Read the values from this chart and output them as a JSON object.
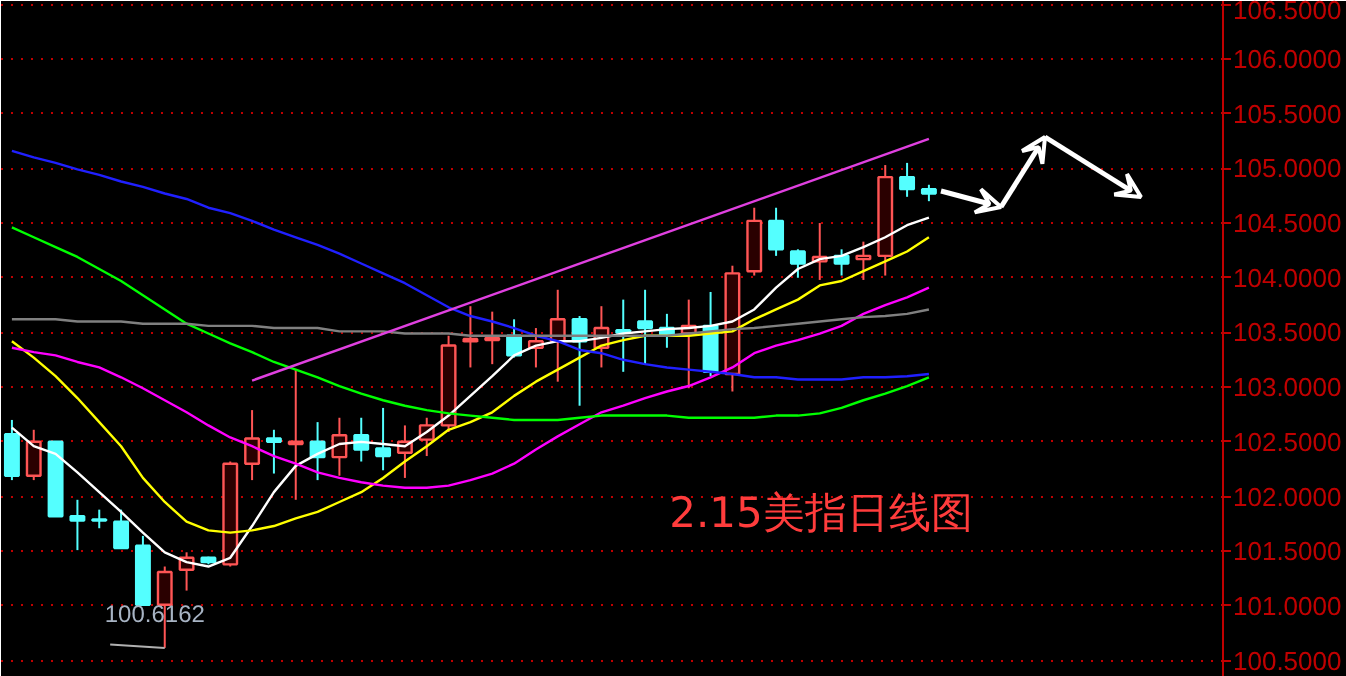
{
  "chart_data": {
    "type": "candlestick",
    "title": "2.15美指日线图",
    "categories": [
      null,
      null,
      null,
      null,
      null,
      null,
      null,
      null,
      null,
      null,
      null,
      null,
      null,
      null,
      null,
      null,
      null,
      null,
      null,
      null,
      null,
      null,
      null,
      null,
      null,
      null,
      null,
      null,
      null,
      null,
      null,
      null,
      null,
      null,
      null,
      null,
      null,
      null,
      null,
      null,
      null,
      null,
      null
    ],
    "ohlc": [
      [
        102.57,
        102.7,
        102.15,
        102.19
      ],
      [
        102.19,
        102.61,
        102.15,
        102.5
      ],
      [
        102.5,
        102.5,
        101.82,
        101.82
      ],
      [
        101.82,
        101.97,
        101.51,
        101.78
      ],
      [
        101.79,
        101.88,
        101.71,
        101.78
      ],
      [
        101.77,
        101.88,
        101.52,
        101.53
      ],
      [
        101.55,
        101.64,
        101.0,
        101.01
      ],
      [
        101.01,
        101.36,
        100.6162,
        101.31
      ],
      [
        101.33,
        101.49,
        101.14,
        101.44
      ],
      [
        101.44,
        101.45,
        101.38,
        101.4
      ],
      [
        101.38,
        102.32,
        101.36,
        102.3
      ],
      [
        102.3,
        102.79,
        102.15,
        102.53
      ],
      [
        102.53,
        102.61,
        102.21,
        102.5
      ],
      [
        102.48,
        103.16,
        101.97,
        102.5
      ],
      [
        102.5,
        102.68,
        102.15,
        102.36
      ],
      [
        102.36,
        102.72,
        102.19,
        102.56
      ],
      [
        102.56,
        102.72,
        102.32,
        102.43
      ],
      [
        102.44,
        102.81,
        102.24,
        102.37
      ],
      [
        102.4,
        102.65,
        102.17,
        102.5
      ],
      [
        102.52,
        102.72,
        102.37,
        102.65
      ],
      [
        102.65,
        103.47,
        102.59,
        103.38
      ],
      [
        103.42,
        103.74,
        103.18,
        103.44
      ],
      [
        103.43,
        103.69,
        103.21,
        103.45
      ],
      [
        103.47,
        103.62,
        103.27,
        103.29
      ],
      [
        103.36,
        103.54,
        103.18,
        103.42
      ],
      [
        103.42,
        103.89,
        103.05,
        103.62
      ],
      [
        103.62,
        103.65,
        102.83,
        103.42
      ],
      [
        103.36,
        103.74,
        103.18,
        103.54
      ],
      [
        103.52,
        103.8,
        103.14,
        103.5
      ],
      [
        103.6,
        103.89,
        103.21,
        103.54
      ],
      [
        103.54,
        103.67,
        103.36,
        103.47
      ],
      [
        103.49,
        103.8,
        102.99,
        103.56
      ],
      [
        103.56,
        103.87,
        103.1,
        103.14
      ],
      [
        103.12,
        104.11,
        102.96,
        104.04
      ],
      [
        104.06,
        104.64,
        104.02,
        104.52
      ],
      [
        104.52,
        104.64,
        104.2,
        104.26
      ],
      [
        104.24,
        104.26,
        104.0,
        104.13
      ],
      [
        104.15,
        104.5,
        103.98,
        104.19
      ],
      [
        104.2,
        104.26,
        104.02,
        104.13
      ],
      [
        104.17,
        104.33,
        103.98,
        104.2
      ],
      [
        104.2,
        105.03,
        104.02,
        104.92
      ],
      [
        104.92,
        105.05,
        104.74,
        104.81
      ],
      [
        104.81,
        104.85,
        104.7,
        104.77
      ]
    ],
    "colors": [
      "#54ffff",
      "#ff5555",
      "#54ffff",
      "#54ffff",
      "#54ffff",
      "#54ffff",
      "#54ffff",
      "#ff5555",
      "#ff5555",
      "#54ffff",
      "#ff5555",
      "#ff5555",
      "#54ffff",
      "#ff5555",
      "#54ffff",
      "#ff5555",
      "#54ffff",
      "#54ffff",
      "#ff5555",
      "#ff5555",
      "#ff5555",
      "#ff5555",
      "#ff5555",
      "#54ffff",
      "#ff5555",
      "#ff5555",
      "#54ffff",
      "#ff5555",
      "#54ffff",
      "#54ffff",
      "#54ffff",
      "#ff5555",
      "#54ffff",
      "#ff5555",
      "#ff5555",
      "#54ffff",
      "#54ffff",
      "#ff5555",
      "#54ffff",
      "#ff5555",
      "#ff5555",
      "#54ffff",
      "#54ffff"
    ],
    "series": [
      {
        "type": "line",
        "color": "#ffffff",
        "values": [
          102.63,
          102.46,
          102.39,
          102.22,
          102.04,
          101.86,
          101.67,
          101.49,
          101.4,
          101.36,
          101.44,
          101.73,
          102.04,
          102.28,
          102.39,
          102.48,
          102.5,
          102.48,
          102.46,
          102.59,
          102.74,
          102.92,
          103.1,
          103.29,
          103.38,
          103.42,
          103.42,
          103.45,
          103.49,
          103.51,
          103.53,
          103.54,
          103.56,
          103.6,
          103.71,
          103.91,
          104.08,
          104.17,
          104.2,
          104.28,
          104.37,
          104.48,
          104.55
        ]
      },
      {
        "type": "line",
        "color": "#ffff00",
        "values": [
          103.42,
          103.27,
          103.1,
          102.9,
          102.68,
          102.46,
          102.17,
          101.95,
          101.77,
          101.69,
          101.67,
          101.69,
          101.73,
          101.8,
          101.86,
          101.95,
          102.04,
          102.17,
          102.32,
          102.46,
          102.61,
          102.68,
          102.77,
          102.92,
          103.05,
          103.16,
          103.27,
          103.38,
          103.43,
          103.47,
          103.47,
          103.47,
          103.49,
          103.51,
          103.62,
          103.71,
          103.8,
          103.93,
          103.97,
          104.06,
          104.15,
          104.24,
          104.37
        ]
      },
      {
        "type": "line",
        "color": "#ff00ff",
        "values": [
          103.36,
          103.32,
          103.29,
          103.23,
          103.18,
          103.09,
          102.99,
          102.88,
          102.77,
          102.65,
          102.54,
          102.46,
          102.37,
          102.3,
          102.22,
          102.17,
          102.13,
          102.1,
          102.08,
          102.08,
          102.1,
          102.15,
          102.21,
          102.3,
          102.43,
          102.55,
          102.66,
          102.77,
          102.83,
          102.9,
          102.96,
          103.01,
          103.09,
          103.18,
          103.31,
          103.38,
          103.43,
          103.49,
          103.56,
          103.67,
          103.75,
          103.82,
          103.91
        ]
      },
      {
        "type": "line",
        "color": "#00ff00",
        "values": [
          104.46,
          104.37,
          104.28,
          104.19,
          104.08,
          103.97,
          103.84,
          103.71,
          103.58,
          103.49,
          103.4,
          103.32,
          103.23,
          103.16,
          103.09,
          103.01,
          102.94,
          102.88,
          102.83,
          102.79,
          102.76,
          102.74,
          102.72,
          102.7,
          102.7,
          102.7,
          102.72,
          102.74,
          102.74,
          102.74,
          102.74,
          102.72,
          102.72,
          102.72,
          102.72,
          102.74,
          102.74,
          102.76,
          102.81,
          102.88,
          102.94,
          103.01,
          103.09
        ]
      },
      {
        "type": "line",
        "color": "#2020ff",
        "values": [
          105.16,
          105.1,
          105.05,
          104.99,
          104.94,
          104.88,
          104.83,
          104.77,
          104.72,
          104.64,
          104.59,
          104.52,
          104.44,
          104.37,
          104.3,
          104.22,
          104.13,
          104.04,
          103.95,
          103.84,
          103.73,
          103.65,
          103.6,
          103.54,
          103.47,
          103.42,
          103.34,
          103.31,
          103.25,
          103.21,
          103.18,
          103.16,
          103.14,
          103.12,
          103.09,
          103.09,
          103.07,
          103.07,
          103.07,
          103.09,
          103.09,
          103.1,
          103.12
        ]
      },
      {
        "type": "line",
        "color": "#808080",
        "values": [
          103.62,
          103.62,
          103.62,
          103.6,
          103.6,
          103.6,
          103.58,
          103.58,
          103.58,
          103.56,
          103.56,
          103.56,
          103.54,
          103.54,
          103.54,
          103.51,
          103.51,
          103.51,
          103.49,
          103.49,
          103.49,
          103.47,
          103.47,
          103.47,
          103.47,
          103.47,
          103.47,
          103.47,
          103.47,
          103.47,
          103.47,
          103.49,
          103.51,
          103.53,
          103.54,
          103.56,
          103.58,
          103.6,
          103.62,
          103.64,
          103.65,
          103.67,
          103.71
        ]
      },
      {
        "type": "line",
        "color": "#e040e0",
        "values": [
          null,
          null,
          null,
          null,
          null,
          null,
          null,
          null,
          null,
          null,
          null,
          103.06,
          null,
          null,
          null,
          null,
          null,
          null,
          null,
          null,
          null,
          null,
          null,
          null,
          null,
          null,
          null,
          null,
          null,
          null,
          null,
          null,
          null,
          null,
          null,
          null,
          null,
          null,
          null,
          null,
          null,
          null,
          105.27
        ]
      }
    ],
    "annotations": [
      {
        "text": "100.6162",
        "y": 100.6162
      }
    ],
    "ylim": [
      100.35,
      106.53
    ],
    "yticks": [
      {
        "value": 100.5,
        "label": "100.5000"
      },
      {
        "value": 101.0,
        "label": "101.0000"
      },
      {
        "value": 101.5,
        "label": "101.5000"
      },
      {
        "value": 102.0,
        "label": "102.0000"
      },
      {
        "value": 102.5,
        "label": "102.5000"
      },
      {
        "value": 103.0,
        "label": "103.0000"
      },
      {
        "value": 103.5,
        "label": "103.5000"
      },
      {
        "value": 104.0,
        "label": "104.0000"
      },
      {
        "value": 104.5,
        "label": "104.5000"
      },
      {
        "value": 105.0,
        "label": "105.0000"
      },
      {
        "value": 105.5,
        "label": "105.5000"
      },
      {
        "value": 106.0,
        "label": "106.0000"
      },
      {
        "value": 106.5,
        "label": "106.5000"
      }
    ],
    "grid": "y",
    "tick_labels": "y"
  }
}
